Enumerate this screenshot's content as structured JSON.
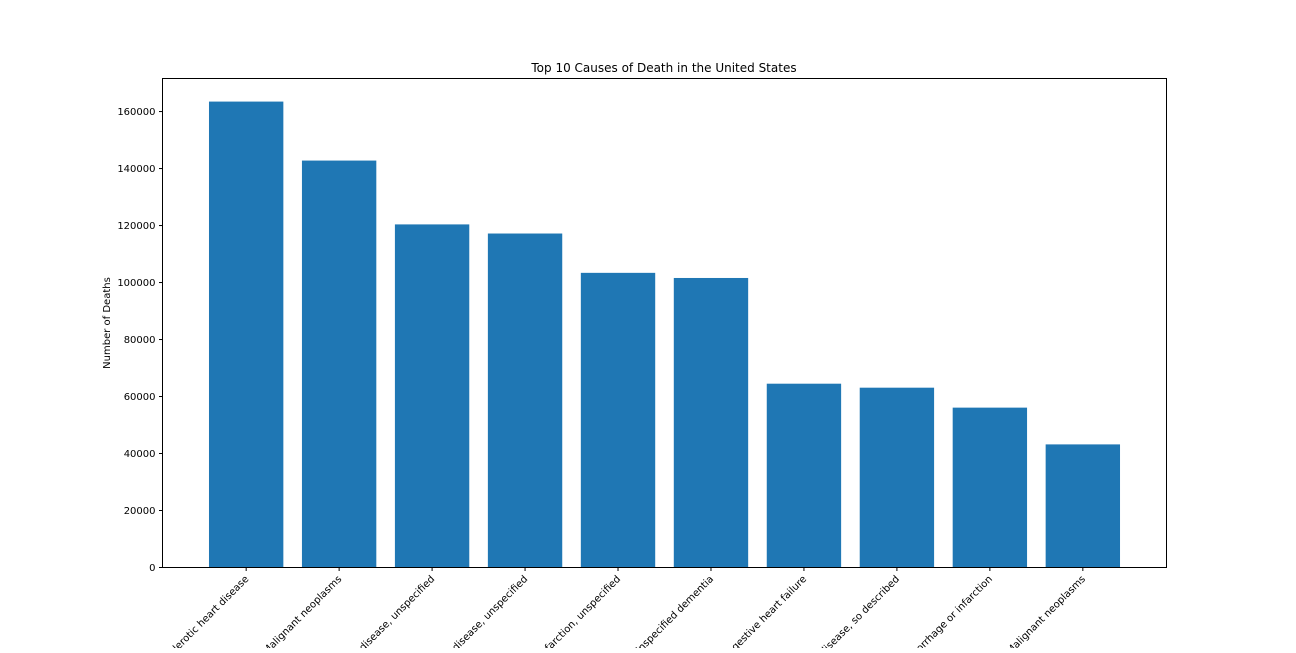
{
  "chart_data": {
    "type": "bar",
    "title": "Top 10 Causes of Death in the United States",
    "xlabel": "",
    "ylabel": "Number of Deaths",
    "ylim": [
      0,
      171600
    ],
    "yticks": [
      0,
      20000,
      40000,
      60000,
      80000,
      100000,
      120000,
      140000,
      160000
    ],
    "grid": false,
    "bar_color": "#1f77b4",
    "categories": [
      "lerotic heart disease",
      "Malignant neoplasms",
      "disease, unspecified",
      "disease, unspecified",
      "nfarction, unspecified",
      "Unspecified dementia",
      "gestive heart failure",
      "disease, so described",
      "orrhage or infarction",
      "Malignant neoplasms"
    ],
    "values": [
      163500,
      142800,
      120400,
      117200,
      103400,
      101600,
      64500,
      63100,
      56100,
      43200
    ]
  }
}
